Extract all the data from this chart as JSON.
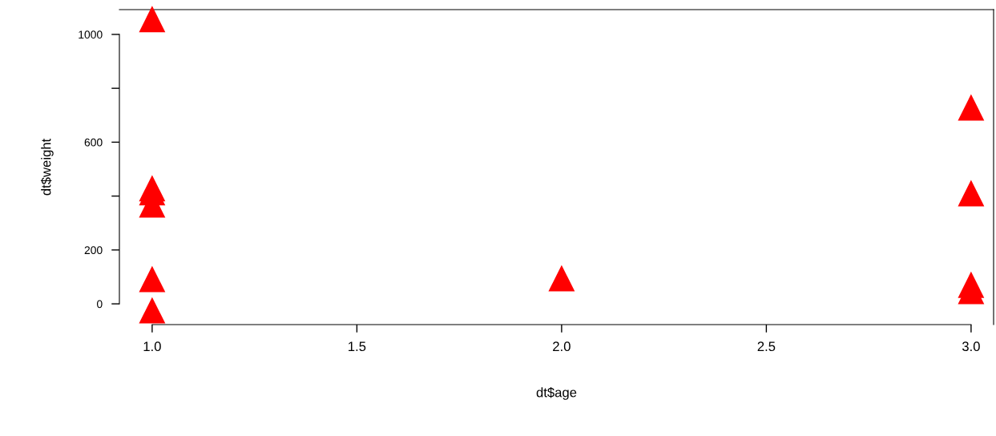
{
  "chart_data": {
    "type": "scatter",
    "xlabel": "dt$age",
    "ylabel": "dt$weight",
    "series": [
      {
        "color": "#ff0000",
        "x": [
          1,
          1,
          1,
          1,
          1,
          1,
          2,
          3,
          3,
          3,
          3
        ],
        "values": [
          1057,
          429,
          414,
          369,
          92,
          -24,
          95,
          729,
          411,
          71,
          48
        ]
      }
    ],
    "marker": "triangle",
    "xlim": [
      0.92,
      3.055
    ],
    "ylim": [
      -77,
      1092
    ],
    "xticks": [
      {
        "value": 1,
        "label": "1.0"
      },
      1.5,
      {
        "value": 2,
        "label": "2.0"
      },
      2.5,
      {
        "value": 3,
        "label": "3.0"
      }
    ],
    "yticks": [
      0,
      200,
      {
        "value": 400,
        "label": null
      },
      600,
      {
        "value": 800,
        "label": null
      },
      1000
    ],
    "grid": false,
    "legend": false
  }
}
